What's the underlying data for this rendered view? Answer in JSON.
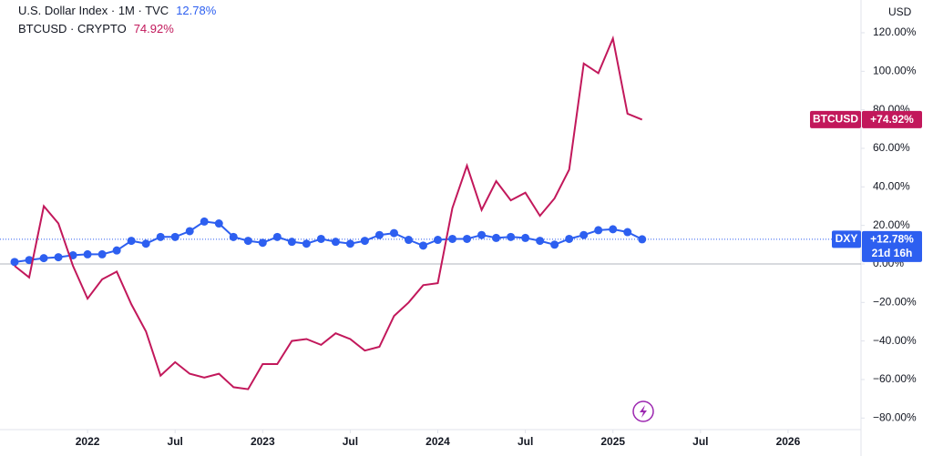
{
  "chart_data": {
    "type": "line",
    "currency": "USD",
    "series": [
      {
        "name": "U.S. Dollar Index · 1M · TVC",
        "symbol": "DXY",
        "color": "#2d5ff0",
        "markers": true,
        "last_value_labels": {
          "legend": "12.78%",
          "tag": "+12.78%"
        },
        "countdown": "21d 16h",
        "values": [
          1,
          2,
          3,
          3.5,
          4.5,
          5,
          5,
          7,
          12,
          10.5,
          14,
          14,
          17,
          22,
          21,
          14,
          12,
          11,
          14,
          11.5,
          10.5,
          13,
          11.5,
          10.5,
          12,
          15,
          16,
          12.5,
          9.5,
          12.5,
          13,
          13,
          15,
          13.5,
          14,
          13.5,
          12,
          10,
          13,
          15,
          17.5,
          18,
          16.5,
          12.78
        ]
      },
      {
        "name": "BTCUSD · CRYPTO",
        "symbol": "BTCUSD",
        "color": "#c2185b",
        "markers": false,
        "last_value_labels": {
          "legend": "74.92%",
          "tag": "+74.92%"
        },
        "values": [
          -1,
          -7,
          30,
          21,
          -1,
          -18,
          -8,
          -4,
          -21,
          -35,
          -58,
          -51,
          -57,
          -59,
          -57,
          -64,
          -65,
          -52,
          -52,
          -40,
          -39,
          -42,
          -36,
          -39,
          -45,
          -43,
          -27,
          -20,
          -11,
          -10,
          29,
          51,
          28,
          43,
          33,
          37,
          25,
          34,
          49,
          104,
          99,
          117,
          78,
          74.92
        ]
      }
    ],
    "x": [
      "2021-08",
      "2021-09",
      "2021-10",
      "2021-11",
      "2021-12",
      "2022-01",
      "2022-02",
      "2022-03",
      "2022-04",
      "2022-05",
      "2022-06",
      "2022-07",
      "2022-08",
      "2022-09",
      "2022-10",
      "2022-11",
      "2022-12",
      "2023-01",
      "2023-02",
      "2023-03",
      "2023-04",
      "2023-05",
      "2023-06",
      "2023-07",
      "2023-08",
      "2023-09",
      "2023-10",
      "2023-11",
      "2023-12",
      "2024-01",
      "2024-02",
      "2024-03",
      "2024-04",
      "2024-05",
      "2024-06",
      "2024-07",
      "2024-08",
      "2024-09",
      "2024-10",
      "2024-11",
      "2024-12",
      "2025-01",
      "2025-02",
      "2025-03"
    ],
    "xlim": [
      "2021-07",
      "2026-06"
    ],
    "xticks": [
      {
        "value": "2022-01",
        "label": "2022"
      },
      {
        "value": "2022-07",
        "label": "Jul"
      },
      {
        "value": "2023-01",
        "label": "2023"
      },
      {
        "value": "2023-07",
        "label": "Jul"
      },
      {
        "value": "2024-01",
        "label": "2024"
      },
      {
        "value": "2024-07",
        "label": "Jul"
      },
      {
        "value": "2025-01",
        "label": "2025"
      },
      {
        "value": "2025-07",
        "label": "Jul"
      },
      {
        "value": "2026-01",
        "label": "2026"
      }
    ],
    "ylim": [
      -86,
      137
    ],
    "yticks": [
      {
        "value": 120,
        "label": "120.00%"
      },
      {
        "value": 100,
        "label": "100.00%"
      },
      {
        "value": 80,
        "label": "80.00%"
      },
      {
        "value": 60,
        "label": "60.00%"
      },
      {
        "value": 40,
        "label": "40.00%"
      },
      {
        "value": 20,
        "label": "20.00%"
      },
      {
        "value": 0,
        "label": "0.00%"
      },
      {
        "value": -20,
        "label": "−20.00%"
      },
      {
        "value": -40,
        "label": "−40.00%"
      },
      {
        "value": -60,
        "label": "−60.00%"
      },
      {
        "value": -80,
        "label": "−80.00%"
      }
    ],
    "baseline": 0,
    "grid": false
  }
}
